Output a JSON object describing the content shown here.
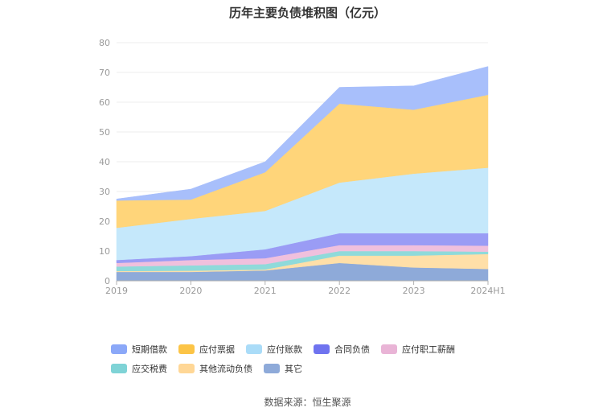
{
  "chart_data": {
    "type": "area",
    "title": "历年主要负债堆积图（亿元）",
    "categories": [
      "2019",
      "2020",
      "2021",
      "2022",
      "2023",
      "2024H1"
    ],
    "ylim": [
      0,
      80
    ],
    "yticks": [
      0,
      10,
      20,
      30,
      40,
      50,
      60,
      70,
      80
    ],
    "stacked": true,
    "grid": true,
    "legend_position": "bottom",
    "series": [
      {
        "name": "其它",
        "color": "#8eaad9",
        "values": [
          3.0,
          3.0,
          3.5,
          6.0,
          4.5,
          4.0
        ]
      },
      {
        "name": "其他流动负债",
        "color": "#ffdfa8",
        "values": [
          0.3,
          0.4,
          0.3,
          2.5,
          4.0,
          5.0
        ]
      },
      {
        "name": "应交税费",
        "color": "#8fdada",
        "values": [
          1.5,
          1.8,
          1.8,
          1.5,
          1.5,
          0.8
        ]
      },
      {
        "name": "应付职工薪酬",
        "color": "#f0c0dd",
        "values": [
          1.2,
          1.8,
          2.0,
          2.0,
          2.0,
          2.0
        ]
      },
      {
        "name": "合同负债",
        "color": "#9a9cf5",
        "values": [
          1.0,
          1.3,
          3.0,
          4.0,
          4.0,
          4.2
        ]
      },
      {
        "name": "应付账款",
        "color": "#c5e8fb",
        "values": [
          10.8,
          12.5,
          12.9,
          17.0,
          20.0,
          22.0
        ]
      },
      {
        "name": "应付票据",
        "color": "#ffd57a",
        "values": [
          9.2,
          6.5,
          13.0,
          26.5,
          21.5,
          24.5
        ]
      },
      {
        "name": "短期借款",
        "color": "#a8bffb",
        "values": [
          0.5,
          3.5,
          3.5,
          5.5,
          8.0,
          9.5
        ]
      }
    ]
  },
  "legend_order": [
    "短期借款",
    "应付票据",
    "应付账款",
    "合同负债",
    "应付职工薪酬",
    "应交税费",
    "其他流动负债",
    "其它"
  ],
  "legend_colors": {
    "短期借款": "#8ba8f8",
    "应付票据": "#fcc446",
    "应付账款": "#aadcf8",
    "合同负债": "#6f73ef",
    "应付职工薪酬": "#e9b4d6",
    "应交税费": "#7fd3d6",
    "其他流动负债": "#ffd796",
    "其它": "#8eaad9"
  },
  "source_note": "数据来源：恒生聚源"
}
